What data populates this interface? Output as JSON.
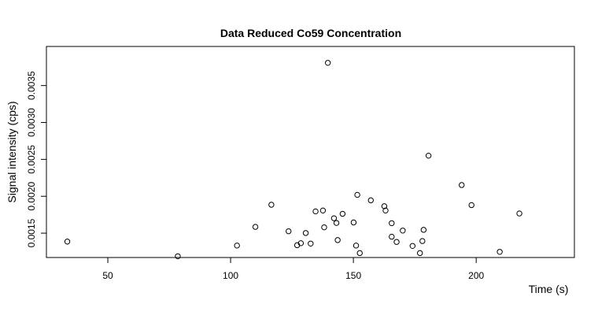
{
  "chart_data": {
    "type": "scatter",
    "title": "Data Reduced Co59 Concentration",
    "xlabel": "Time (s)",
    "ylabel": "Signal intensity (cps)",
    "xlim": [
      25,
      240
    ],
    "ylim": [
      0.00117,
      0.00403
    ],
    "x_ticks": [
      50,
      100,
      150,
      200
    ],
    "x_tick_labels": [
      "50",
      "100",
      "150",
      "200"
    ],
    "y_ticks": [
      0.0015,
      0.002,
      0.0025,
      0.003,
      0.0035
    ],
    "y_tick_labels": [
      "0.0015",
      "0.0020",
      "0.0025",
      "0.0030",
      "0.0035"
    ],
    "grid": false,
    "legend": "none",
    "marker": "open-circle",
    "points": [
      {
        "x": 33.5,
        "y": 0.001386
      },
      {
        "x": 78.5,
        "y": 0.001187
      },
      {
        "x": 102.6,
        "y": 0.001332
      },
      {
        "x": 110.1,
        "y": 0.001585
      },
      {
        "x": 116.6,
        "y": 0.001885
      },
      {
        "x": 123.6,
        "y": 0.001526
      },
      {
        "x": 127.1,
        "y": 0.001337
      },
      {
        "x": 128.6,
        "y": 0.001364
      },
      {
        "x": 130.6,
        "y": 0.001502
      },
      {
        "x": 132.6,
        "y": 0.001359
      },
      {
        "x": 134.6,
        "y": 0.001795
      },
      {
        "x": 137.6,
        "y": 0.001807
      },
      {
        "x": 138.1,
        "y": 0.001579
      },
      {
        "x": 139.6,
        "y": 0.003808
      },
      {
        "x": 142.1,
        "y": 0.001702
      },
      {
        "x": 143.1,
        "y": 0.001638
      },
      {
        "x": 143.6,
        "y": 0.001406
      },
      {
        "x": 145.6,
        "y": 0.001762
      },
      {
        "x": 150.1,
        "y": 0.001645
      },
      {
        "x": 151.1,
        "y": 0.001332
      },
      {
        "x": 151.6,
        "y": 0.002019
      },
      {
        "x": 152.6,
        "y": 0.00123
      },
      {
        "x": 157.1,
        "y": 0.001945
      },
      {
        "x": 162.6,
        "y": 0.001865
      },
      {
        "x": 163.1,
        "y": 0.001807
      },
      {
        "x": 165.6,
        "y": 0.001635
      },
      {
        "x": 165.6,
        "y": 0.001452
      },
      {
        "x": 167.6,
        "y": 0.001381
      },
      {
        "x": 170.1,
        "y": 0.001535
      },
      {
        "x": 174.1,
        "y": 0.001327
      },
      {
        "x": 177.1,
        "y": 0.00123
      },
      {
        "x": 178.1,
        "y": 0.001393
      },
      {
        "x": 178.6,
        "y": 0.001545
      },
      {
        "x": 180.6,
        "y": 0.00255
      },
      {
        "x": 194.1,
        "y": 0.002152
      },
      {
        "x": 198.1,
        "y": 0.00188
      },
      {
        "x": 209.6,
        "y": 0.001247
      },
      {
        "x": 217.6,
        "y": 0.001767
      }
    ]
  }
}
